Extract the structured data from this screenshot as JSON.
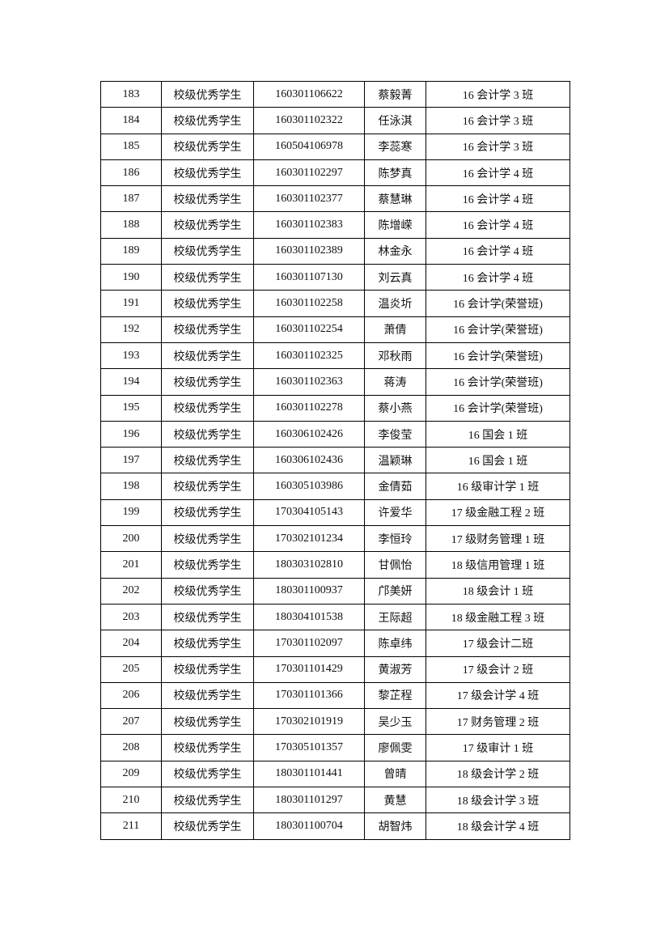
{
  "table": {
    "rows": [
      [
        "183",
        "校级优秀学生",
        "160301106622",
        "蔡毅菁",
        "16 会计学 3 班"
      ],
      [
        "184",
        "校级优秀学生",
        "160301102322",
        "任泳淇",
        "16 会计学 3 班"
      ],
      [
        "185",
        "校级优秀学生",
        "160504106978",
        "李蕊寒",
        "16 会计学 3 班"
      ],
      [
        "186",
        "校级优秀学生",
        "160301102297",
        "陈梦真",
        "16 会计学 4 班"
      ],
      [
        "187",
        "校级优秀学生",
        "160301102377",
        "蔡慧琳",
        "16 会计学 4 班"
      ],
      [
        "188",
        "校级优秀学生",
        "160301102383",
        "陈增嵘",
        "16 会计学 4 班"
      ],
      [
        "189",
        "校级优秀学生",
        "160301102389",
        "林金永",
        "16 会计学 4 班"
      ],
      [
        "190",
        "校级优秀学生",
        "160301107130",
        "刘云真",
        "16 会计学 4 班"
      ],
      [
        "191",
        "校级优秀学生",
        "160301102258",
        "温炎圻",
        "16 会计学(荣誉班)"
      ],
      [
        "192",
        "校级优秀学生",
        "160301102254",
        "萧倩",
        "16 会计学(荣誉班)"
      ],
      [
        "193",
        "校级优秀学生",
        "160301102325",
        "邓秋雨",
        "16 会计学(荣誉班)"
      ],
      [
        "194",
        "校级优秀学生",
        "160301102363",
        "蒋涛",
        "16 会计学(荣誉班)"
      ],
      [
        "195",
        "校级优秀学生",
        "160301102278",
        "蔡小燕",
        "16 会计学(荣誉班)"
      ],
      [
        "196",
        "校级优秀学生",
        "160306102426",
        "李俊莹",
        "16 国会 1 班"
      ],
      [
        "197",
        "校级优秀学生",
        "160306102436",
        "温颖琳",
        "16 国会 1 班"
      ],
      [
        "198",
        "校级优秀学生",
        "160305103986",
        "金倩茹",
        "16 级审计学 1 班"
      ],
      [
        "199",
        "校级优秀学生",
        "170304105143",
        "许爱华",
        "17 级金融工程 2 班"
      ],
      [
        "200",
        "校级优秀学生",
        "170302101234",
        "李恒玲",
        "17 级财务管理 1 班"
      ],
      [
        "201",
        "校级优秀学生",
        "180303102810",
        "甘佩怡",
        "18 级信用管理 1 班"
      ],
      [
        "202",
        "校级优秀学生",
        "180301100937",
        "邝美妍",
        "18 级会计 1 班"
      ],
      [
        "203",
        "校级优秀学生",
        "180304101538",
        "王际超",
        "18 级金融工程 3 班"
      ],
      [
        "204",
        "校级优秀学生",
        "170301102097",
        "陈卓纬",
        "17 级会计二班"
      ],
      [
        "205",
        "校级优秀学生",
        "170301101429",
        "黄淑芳",
        "17 级会计 2 班"
      ],
      [
        "206",
        "校级优秀学生",
        "170301101366",
        "黎芷程",
        "17 级会计学 4 班"
      ],
      [
        "207",
        "校级优秀学生",
        "170302101919",
        "吴少玉",
        "17 财务管理 2 班"
      ],
      [
        "208",
        "校级优秀学生",
        "170305101357",
        "廖佩雯",
        "17 级审计 1 班"
      ],
      [
        "209",
        "校级优秀学生",
        "180301101441",
        "曾晴",
        "18 级会计学 2 班"
      ],
      [
        "210",
        "校级优秀学生",
        "180301101297",
        "黄慧",
        "18 级会计学 3 班"
      ],
      [
        "211",
        "校级优秀学生",
        "180301100704",
        "胡智炜",
        "18 级会计学 4 班"
      ]
    ]
  }
}
